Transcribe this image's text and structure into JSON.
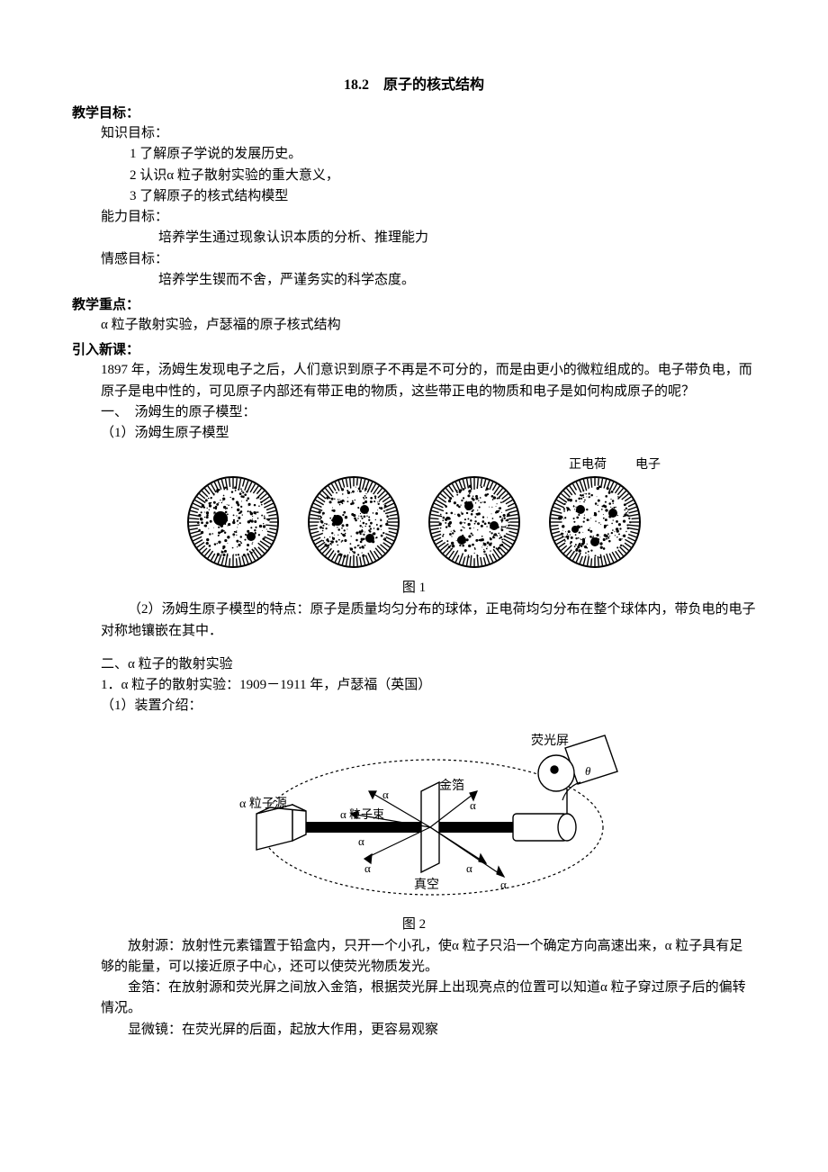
{
  "title": "18.2　原子的核式结构",
  "sections": {
    "goals_head": "教学目标：",
    "knowledge_head": "知识目标：",
    "knowledge_items": [
      "1 了解原子学说的发展历史。",
      "2 认识α 粒子散射实验的重大意义，",
      "3 了解原子的核式结构模型"
    ],
    "ability_head": "能力目标：",
    "ability_text": "培养学生通过现象认识本质的分析、推理能力",
    "emotion_head": "情感目标：",
    "emotion_text": "培养学生锲而不舍，严谨务实的科学态度。",
    "keypoint_head": "教学重点：",
    "keypoint_text": "α 粒子散射实验，卢瑟福的原子核式结构",
    "intro_head": "引入新课：",
    "intro_text": "1897 年，汤姆生发现电子之后，人们意识到原子不再是不可分的，而是由更小的微粒组成的。电子带负电，而原子是电中性的，可见原子内部还有带正电的物质，这些带正电的物质和电子是如何构成原子的呢？",
    "thomson_head": "一、　汤姆生的原子模型：",
    "thomson_1": "（1）汤姆生原子模型",
    "fig1_caption": "图 1",
    "fig1_label_pos": "正电荷",
    "fig1_label_e": "电子",
    "thomson_desc": "（2）汤姆生原子模型的特点：原子是质量均匀分布的球体，正电荷均匀分布在整个球体内，带负电的电子对称地镶嵌在其中．",
    "alpha_head": "二、α 粒子的散射实验",
    "alpha_line1": "1．α 粒子的散射实验：1909－1911 年，卢瑟福（英国）",
    "alpha_line2": "（1）装置介绍：",
    "fig2_caption": "图 2",
    "fig2_labels": {
      "screen": "荧光屏",
      "foil": "金箔",
      "source": "α 粒子源",
      "beam": "α 粒子束",
      "vacuum": "真空",
      "alpha": "α"
    },
    "radiator": "放射源：放射性元素镭置于铅盒内，只开一个小孔，使α 粒子只沿一个确定方向高速出来，α 粒子具有足够的能量，可以接近原子中心，还可以使荧光物质发光。",
    "goldfoil": "金箔：在放射源和荧光屏之间放入金箔，根据荧光屏上出现亮点的位置可以知道α 粒子穿过原子后的偏转情况。",
    "microscope": "显微镜：在荧光屏的后面，起放大作用，更容易观察"
  },
  "style": {
    "page_bg": "#ffffff",
    "text_color": "#000000",
    "fontsize_body": 15,
    "fontsize_title": 16,
    "plum": {
      "count": 4,
      "r": 50,
      "fill_dot": "#000000",
      "bg": "#ffffff"
    },
    "apparatus": {
      "stroke": "#000000",
      "stroke_width": 1.5,
      "dash": "3,3"
    }
  }
}
